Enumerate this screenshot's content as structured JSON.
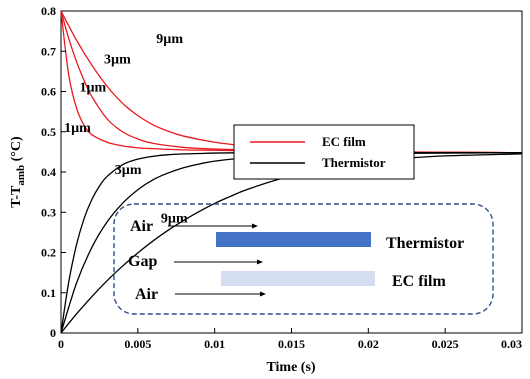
{
  "chart_data": {
    "type": "line",
    "xlabel": "Time (s)",
    "ylabel_main": "T-T",
    "ylabel_sub": "amb",
    "ylabel_unit": " (°C)",
    "xlim": [
      0,
      0.03
    ],
    "ylim": [
      0,
      0.8
    ],
    "xticks": [
      0,
      0.005,
      0.01,
      0.015,
      0.02,
      0.025,
      0.03
    ],
    "xtick_labels": [
      "0",
      "0.005",
      "0.01",
      "0.015",
      "0.02",
      "0.025",
      "0.03"
    ],
    "yticks": [
      0,
      0.1,
      0.2,
      0.3,
      0.4,
      0.5,
      0.6,
      0.7,
      0.8
    ],
    "ytick_labels": [
      "0",
      "0.1",
      "0.2",
      "0.3",
      "0.4",
      "0.5",
      "0.6",
      "0.7",
      "0.8"
    ],
    "grid": false,
    "legend_position": "center-right",
    "series": [
      {
        "name": "EC film",
        "thickness": "1µm",
        "color": "#e8191f",
        "x": [
          0,
          0.0005,
          0.001,
          0.0015,
          0.002,
          0.003,
          0.004,
          0.005,
          0.006,
          0.008,
          0.01,
          0.013,
          0.016,
          0.02,
          0.025,
          0.03
        ],
        "y": [
          0.8,
          0.642,
          0.56,
          0.516,
          0.493,
          0.474,
          0.465,
          0.46,
          0.458,
          0.455,
          0.454,
          0.452,
          0.451,
          0.45,
          0.449,
          0.448
        ]
      },
      {
        "name": "EC film",
        "thickness": "3µm",
        "color": "#e8191f",
        "x": [
          0,
          0.0005,
          0.001,
          0.0015,
          0.002,
          0.003,
          0.004,
          0.005,
          0.006,
          0.008,
          0.01,
          0.013,
          0.016,
          0.02,
          0.025,
          0.03
        ],
        "y": [
          0.8,
          0.732,
          0.675,
          0.628,
          0.588,
          0.532,
          0.5,
          0.482,
          0.471,
          0.461,
          0.457,
          0.454,
          0.452,
          0.45,
          0.449,
          0.448
        ]
      },
      {
        "name": "EC film",
        "thickness": "9µm",
        "color": "#e8191f",
        "x": [
          0,
          0.001,
          0.002,
          0.003,
          0.004,
          0.005,
          0.006,
          0.007,
          0.008,
          0.01,
          0.012,
          0.014,
          0.016,
          0.02,
          0.025,
          0.03
        ],
        "y": [
          0.8,
          0.728,
          0.666,
          0.613,
          0.571,
          0.54,
          0.517,
          0.501,
          0.489,
          0.474,
          0.465,
          0.459,
          0.455,
          0.451,
          0.449,
          0.448
        ]
      },
      {
        "name": "Thermistor",
        "thickness": "1µm",
        "color": "#000000",
        "x": [
          0,
          0.0005,
          0.001,
          0.0015,
          0.002,
          0.0025,
          0.003,
          0.004,
          0.005,
          0.006,
          0.007,
          0.008,
          0.009,
          0.01,
          0.012,
          0.015,
          0.02,
          0.025,
          0.03
        ],
        "y": [
          0,
          0.126,
          0.218,
          0.284,
          0.331,
          0.365,
          0.389,
          0.418,
          0.432,
          0.439,
          0.443,
          0.445,
          0.446,
          0.447,
          0.448,
          0.448,
          0.448,
          0.448,
          0.448
        ]
      },
      {
        "name": "Thermistor",
        "thickness": "3µm",
        "color": "#000000",
        "x": [
          0,
          0.001,
          0.002,
          0.003,
          0.004,
          0.005,
          0.006,
          0.007,
          0.008,
          0.009,
          0.01,
          0.012,
          0.014,
          0.016,
          0.02,
          0.025,
          0.03
        ],
        "y": [
          0,
          0.123,
          0.212,
          0.276,
          0.322,
          0.356,
          0.381,
          0.398,
          0.411,
          0.42,
          0.427,
          0.435,
          0.44,
          0.443,
          0.446,
          0.447,
          0.448
        ]
      },
      {
        "name": "Thermistor",
        "thickness": "9µm",
        "color": "#000000",
        "x": [
          0,
          0.001,
          0.002,
          0.003,
          0.004,
          0.005,
          0.006,
          0.007,
          0.008,
          0.009,
          0.01,
          0.011,
          0.012,
          0.014,
          0.016,
          0.018,
          0.02,
          0.022,
          0.025,
          0.03
        ],
        "y": [
          0,
          0.047,
          0.09,
          0.13,
          0.166,
          0.199,
          0.229,
          0.256,
          0.28,
          0.302,
          0.322,
          0.339,
          0.355,
          0.38,
          0.4,
          0.415,
          0.426,
          0.433,
          0.44,
          0.445
        ]
      }
    ],
    "annotations": [
      {
        "text": "9µm",
        "x": 0.0062,
        "y": 0.72
      },
      {
        "text": "3µm",
        "x": 0.0028,
        "y": 0.67
      },
      {
        "text": "1µm",
        "x": 0.0012,
        "y": 0.6
      },
      {
        "text": "1µm",
        "x": 0.0002,
        "y": 0.5
      },
      {
        "text": "3µm",
        "x": 0.0035,
        "y": 0.395
      },
      {
        "text": "9µm",
        "x": 0.0065,
        "y": 0.275
      }
    ],
    "legend": [
      {
        "label": "EC film",
        "color": "#e8191f"
      },
      {
        "label": "Thermistor",
        "color": "#000000"
      }
    ],
    "inset": {
      "labels": [
        "Air",
        "Gap",
        "Air"
      ],
      "layers": [
        {
          "label": "Thermistor",
          "color": "#4472c4"
        },
        {
          "label": "EC film",
          "color": "#d5def1"
        }
      ],
      "border_color": "#2f4f8f"
    }
  }
}
